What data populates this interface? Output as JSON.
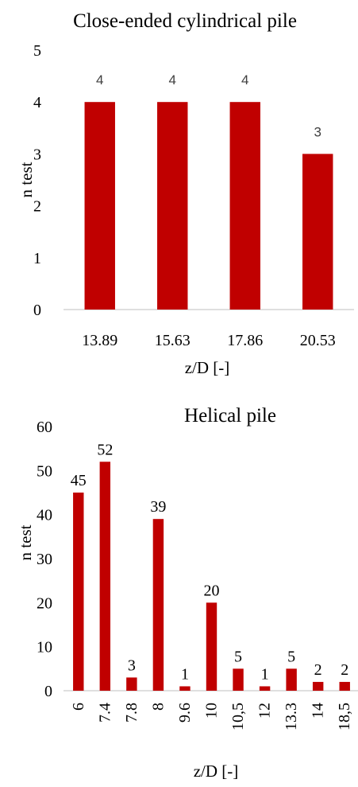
{
  "chart_data": [
    {
      "type": "bar",
      "title": "Close-ended cylindrical pile",
      "xlabel": "z/D [-]",
      "ylabel": "n  test",
      "categories": [
        "13.89",
        "15.63",
        "17.86",
        "20.53"
      ],
      "values": [
        4,
        4,
        4,
        3
      ],
      "ylim": [
        0,
        5
      ],
      "yticks": [
        "0",
        "1",
        "2",
        "3",
        "4",
        "5"
      ],
      "bar_color": "#c00000",
      "grid": false,
      "data_labels": true
    },
    {
      "type": "bar",
      "title": "Helical pile",
      "xlabel": "z/D [-]",
      "ylabel": "n  test",
      "categories": [
        "6",
        "7.4",
        "7.8",
        "8",
        "9.6",
        "10",
        "10,5",
        "12",
        "13.3",
        "14",
        "18,5"
      ],
      "values": [
        45,
        52,
        3,
        39,
        1,
        20,
        5,
        1,
        5,
        2,
        2
      ],
      "ylim": [
        0,
        60
      ],
      "yticks": [
        "0",
        "10",
        "20",
        "30",
        "40",
        "50",
        "60"
      ],
      "bar_color": "#c00000",
      "grid": false,
      "data_labels": true
    }
  ]
}
